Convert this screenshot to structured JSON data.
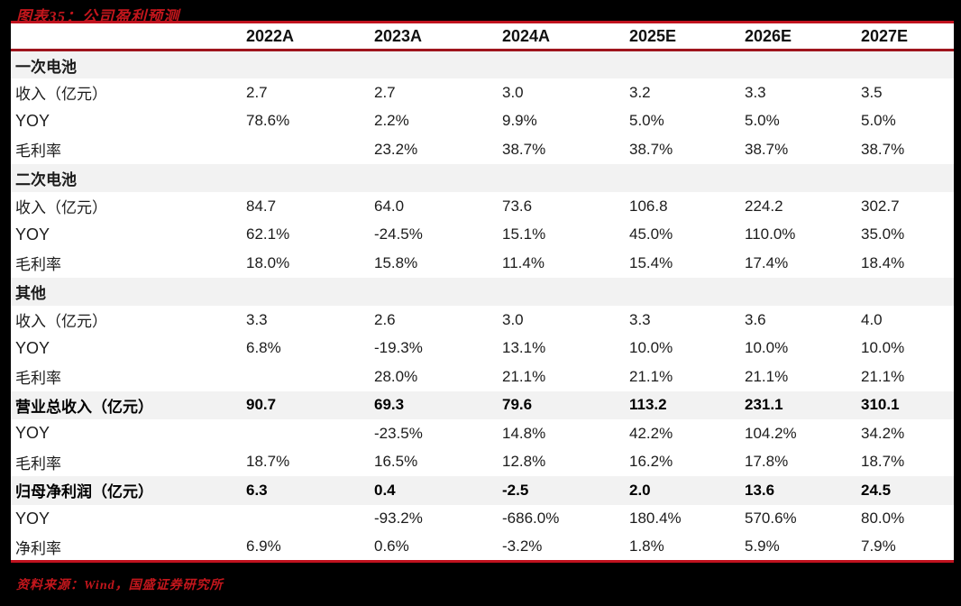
{
  "figure": {
    "title": "图表35：公司盈利预测",
    "source": "资料来源：Wind，国盛证券研究所"
  },
  "colors": {
    "canvas_bg": "#000000",
    "title_red": "#c3161c",
    "rule_red": "#c0121e",
    "header_rule_dark_red": "#9f151d",
    "shaded_row_bg": "#f2f2f2",
    "body_text": "#1c1c1c"
  },
  "table": {
    "columns": [
      "2022A",
      "2023A",
      "2024A",
      "2025E",
      "2026E",
      "2027E"
    ],
    "rows": [
      {
        "type": "section",
        "label": "一次电池",
        "values": [
          "",
          "",
          "",
          "",
          "",
          ""
        ]
      },
      {
        "type": "data",
        "label": "收入（亿元）",
        "values": [
          "2.7",
          "2.7",
          "3.0",
          "3.2",
          "3.3",
          "3.5"
        ]
      },
      {
        "type": "data",
        "label": "YOY",
        "values": [
          "78.6%",
          "2.2%",
          "9.9%",
          "5.0%",
          "5.0%",
          "5.0%"
        ]
      },
      {
        "type": "data",
        "label": "毛利率",
        "values": [
          "",
          "23.2%",
          "38.7%",
          "38.7%",
          "38.7%",
          "38.7%"
        ]
      },
      {
        "type": "section",
        "label": "二次电池",
        "values": [
          "",
          "",
          "",
          "",
          "",
          ""
        ]
      },
      {
        "type": "data",
        "label": "收入（亿元）",
        "values": [
          "84.7",
          "64.0",
          "73.6",
          "106.8",
          "224.2",
          "302.7"
        ]
      },
      {
        "type": "data",
        "label": "YOY",
        "values": [
          "62.1%",
          "-24.5%",
          "15.1%",
          "45.0%",
          "110.0%",
          "35.0%"
        ]
      },
      {
        "type": "data",
        "label": "毛利率",
        "values": [
          "18.0%",
          "15.8%",
          "11.4%",
          "15.4%",
          "17.4%",
          "18.4%"
        ]
      },
      {
        "type": "section",
        "label": "其他",
        "values": [
          "",
          "",
          "",
          "",
          "",
          ""
        ]
      },
      {
        "type": "data",
        "label": "收入（亿元）",
        "values": [
          "3.3",
          "2.6",
          "3.0",
          "3.3",
          "3.6",
          "4.0"
        ]
      },
      {
        "type": "data",
        "label": "YOY",
        "values": [
          "6.8%",
          "-19.3%",
          "13.1%",
          "10.0%",
          "10.0%",
          "10.0%"
        ]
      },
      {
        "type": "data",
        "label": "毛利率",
        "values": [
          "",
          "28.0%",
          "21.1%",
          "21.1%",
          "21.1%",
          "21.1%"
        ]
      },
      {
        "type": "total",
        "label": "营业总收入（亿元）",
        "values": [
          "90.7",
          "69.3",
          "79.6",
          "113.2",
          "231.1",
          "310.1"
        ]
      },
      {
        "type": "data",
        "label": "YOY",
        "values": [
          "",
          "-23.5%",
          "14.8%",
          "42.2%",
          "104.2%",
          "34.2%"
        ]
      },
      {
        "type": "data",
        "label": "毛利率",
        "values": [
          "18.7%",
          "16.5%",
          "12.8%",
          "16.2%",
          "17.8%",
          "18.7%"
        ]
      },
      {
        "type": "total",
        "label": "归母净利润（亿元）",
        "values": [
          "6.3",
          "0.4",
          "-2.5",
          "2.0",
          "13.6",
          "24.5"
        ]
      },
      {
        "type": "data",
        "label": "YOY",
        "values": [
          "",
          "-93.2%",
          "-686.0%",
          "180.4%",
          "570.6%",
          "80.0%"
        ]
      },
      {
        "type": "data",
        "label": "净利率",
        "values": [
          "6.9%",
          "0.6%",
          "-3.2%",
          "1.8%",
          "5.9%",
          "7.9%"
        ]
      }
    ]
  }
}
